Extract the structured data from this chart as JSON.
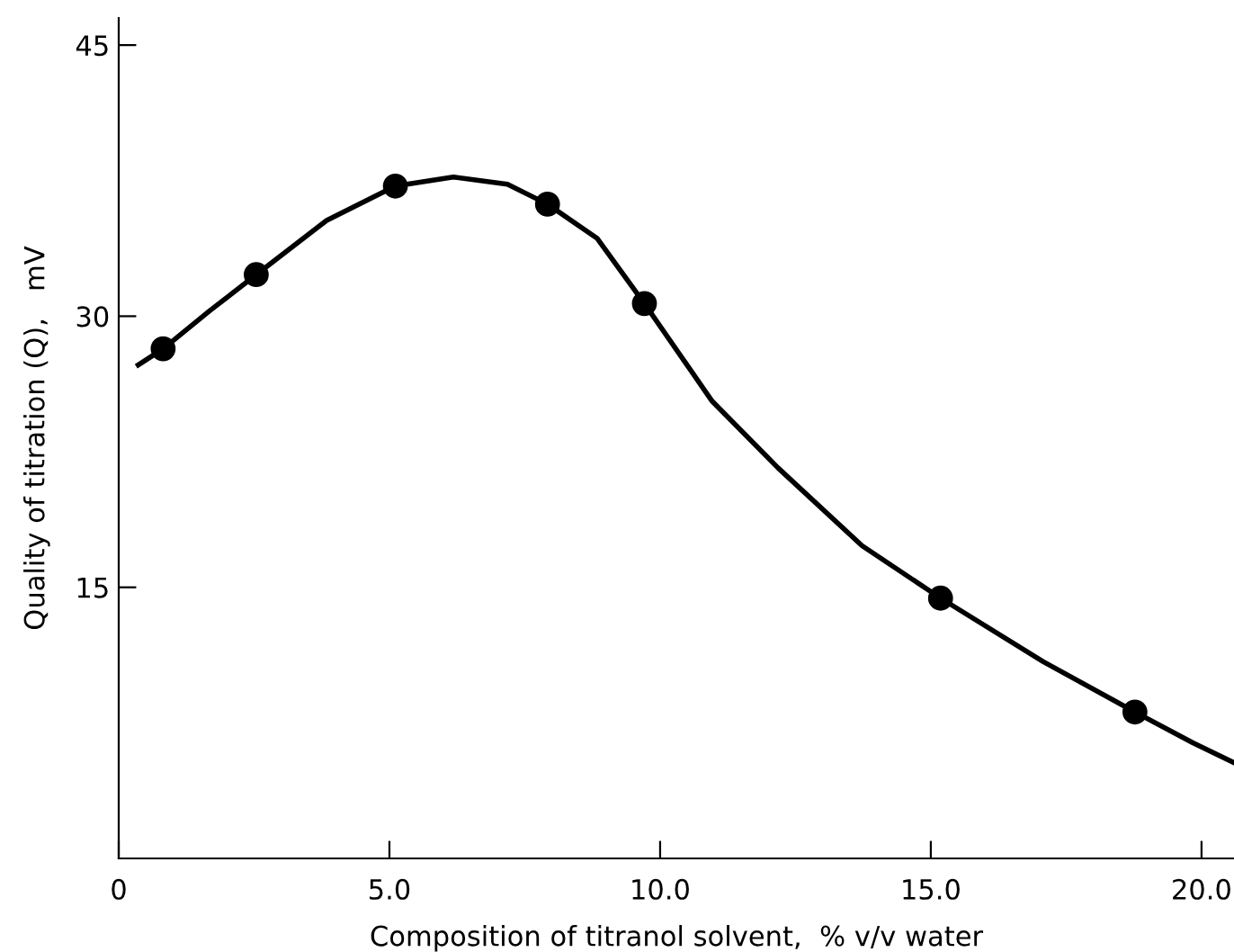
{
  "chart_data": {
    "type": "scatter",
    "xlabel": "Composition of titranol solvent,  % v/v water",
    "ylabel": "Quality of titration (Q),   mV",
    "series": [
      {
        "color": "#000000",
        "marker": "circle",
        "x": [
          0.82,
          2.54,
          5.11,
          7.92,
          9.71,
          15.18,
          18.77
        ],
        "values": [
          28.2,
          32.3,
          37.2,
          36.2,
          30.7,
          14.4,
          8.1
        ]
      },
      {
        "type": "line",
        "color": "#000000",
        "marker": "none",
        "line_style": "solid",
        "x": [
          0.36,
          0.82,
          1.68,
          2.54,
          3.84,
          5.11,
          6.18,
          7.18,
          7.92,
          8.84,
          9.71,
          10.96,
          12.18,
          13.73,
          15.18,
          17.07,
          18.77,
          19.84,
          20.6
        ],
        "values": [
          27.3,
          28.2,
          30.3,
          32.3,
          35.3,
          37.2,
          37.7,
          37.3,
          36.2,
          34.3,
          30.7,
          25.3,
          21.6,
          17.3,
          14.4,
          10.9,
          8.1,
          6.4,
          5.3
        ]
      }
    ],
    "xlim": [
      0,
      20.6
    ],
    "ylim": [
      0,
      46.5
    ],
    "xticks": [
      {
        "value": 0,
        "label": "0"
      },
      {
        "value": 5,
        "label": "5.0"
      },
      {
        "value": 10,
        "label": "10.0"
      },
      {
        "value": 15,
        "label": "15.0"
      },
      {
        "value": 20,
        "label": "20.0"
      }
    ],
    "yticks": [
      15,
      30,
      45
    ],
    "grid": false,
    "legend": false
  }
}
